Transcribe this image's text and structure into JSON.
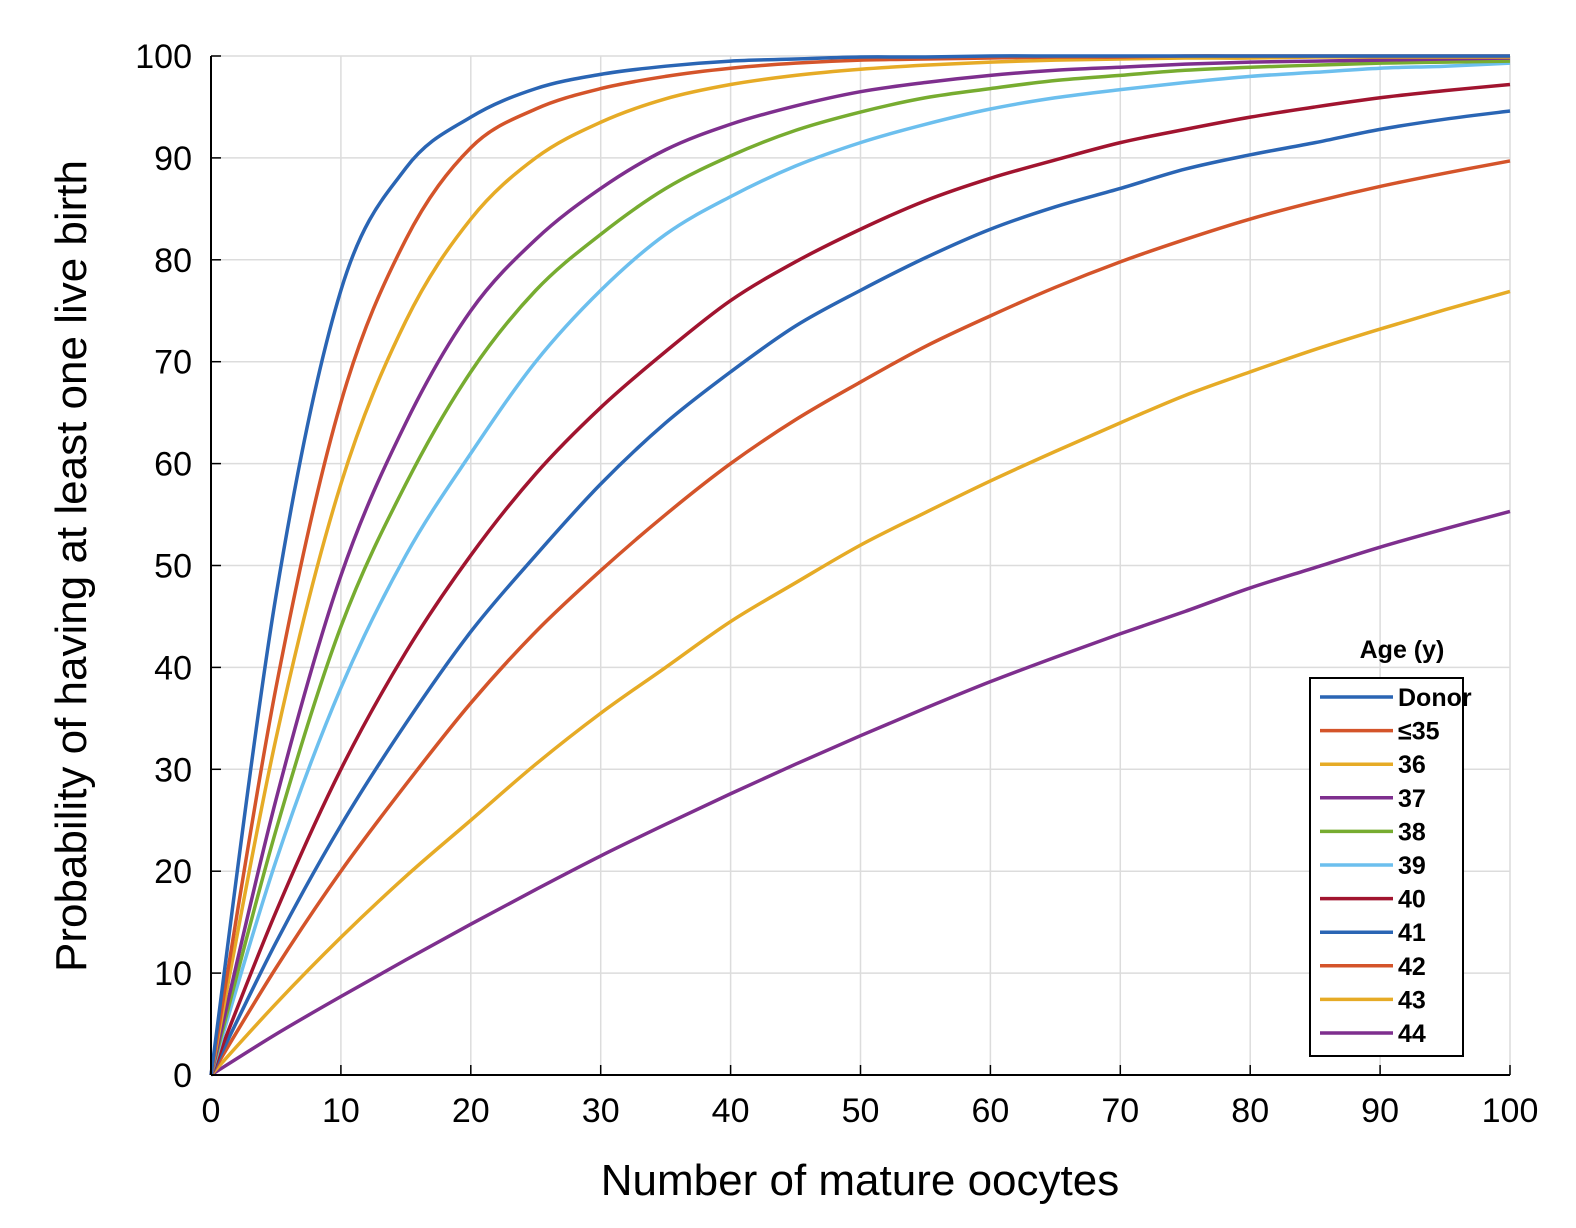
{
  "chart_data": {
    "type": "line",
    "title": "",
    "xlabel": "Number of mature oocytes",
    "ylabel": "Probability of having at least one live birth",
    "xlim": [
      0,
      100
    ],
    "ylim": [
      0,
      100
    ],
    "xticks": [
      "0",
      "10",
      "20",
      "30",
      "40",
      "50",
      "60",
      "70",
      "80",
      "90",
      "100"
    ],
    "yticks": [
      "0",
      "10",
      "20",
      "30",
      "40",
      "50",
      "60",
      "70",
      "80",
      "90",
      "100"
    ],
    "grid": true,
    "legend": {
      "title": "Age (y)",
      "placement": "bottom-right"
    },
    "x": [
      0,
      5,
      10,
      15,
      20,
      25,
      30,
      35,
      40,
      45,
      50,
      55,
      60,
      65,
      70,
      75,
      80,
      85,
      90,
      95,
      100
    ],
    "series": [
      {
        "name": "Donor",
        "color": "#2a65b4",
        "values": [
          0,
          47,
          77,
          89,
          94,
          96.8,
          98.2,
          99,
          99.5,
          99.7,
          99.9,
          99.9,
          100,
          100,
          100,
          100,
          100,
          100,
          100,
          100,
          100
        ]
      },
      {
        "name": "≤35",
        "color": "#d4542a",
        "values": [
          0,
          38,
          66,
          82,
          91,
          94.8,
          96.8,
          98,
          98.8,
          99.3,
          99.6,
          99.7,
          99.8,
          99.9,
          99.9,
          100,
          100,
          100,
          100,
          100,
          100
        ]
      },
      {
        "name": "36",
        "color": "#e6ab26",
        "values": [
          0,
          33,
          58,
          74,
          84,
          90,
          93.5,
          95.8,
          97.2,
          98.1,
          98.7,
          99.1,
          99.4,
          99.6,
          99.7,
          99.8,
          99.8,
          99.9,
          99.9,
          99.9,
          99.9
        ]
      },
      {
        "name": "37",
        "color": "#7e2f8e",
        "values": [
          0,
          27,
          49,
          64,
          75,
          82,
          87,
          90.8,
          93.3,
          95.1,
          96.5,
          97.4,
          98.1,
          98.6,
          98.9,
          99.2,
          99.4,
          99.5,
          99.6,
          99.7,
          99.8
        ]
      },
      {
        "name": "38",
        "color": "#77ac30",
        "values": [
          0,
          24,
          44,
          58,
          69,
          77,
          82.5,
          87,
          90.2,
          92.7,
          94.5,
          95.9,
          96.8,
          97.6,
          98.1,
          98.6,
          98.9,
          99.1,
          99.3,
          99.4,
          99.5
        ]
      },
      {
        "name": "39",
        "color": "#6cbfee",
        "values": [
          0,
          21,
          38,
          51,
          61,
          70,
          77,
          82.5,
          86.2,
          89.2,
          91.5,
          93.3,
          94.8,
          95.9,
          96.7,
          97.4,
          98,
          98.4,
          98.8,
          99,
          99.3
        ]
      },
      {
        "name": "40",
        "color": "#a1142f",
        "values": [
          0,
          16,
          30,
          41.5,
          51,
          59,
          65.5,
          71,
          76,
          79.8,
          83,
          85.8,
          88,
          89.8,
          91.5,
          92.8,
          94,
          95,
          95.9,
          96.6,
          97.2
        ]
      },
      {
        "name": "41",
        "color": "#2a65b4",
        "values": [
          0,
          13,
          24.5,
          34.5,
          43.5,
          51,
          58,
          64,
          69,
          73.5,
          77,
          80.2,
          83,
          85.2,
          87,
          88.9,
          90.3,
          91.5,
          92.8,
          93.8,
          94.6
        ]
      },
      {
        "name": "42",
        "color": "#d4542a",
        "values": [
          0,
          10.5,
          20,
          28.5,
          36.5,
          43.5,
          49.5,
          55,
          60,
          64.3,
          68,
          71.5,
          74.5,
          77.3,
          79.8,
          82,
          84,
          85.7,
          87.2,
          88.5,
          89.7
        ]
      },
      {
        "name": "43",
        "color": "#e6ab26",
        "values": [
          0,
          7,
          13.5,
          19.5,
          25,
          30.5,
          35.5,
          40,
          44.5,
          48.3,
          52,
          55.2,
          58.3,
          61.2,
          64,
          66.7,
          69,
          71.2,
          73.2,
          75.1,
          76.9
        ]
      },
      {
        "name": "44",
        "color": "#7e2f8e",
        "values": [
          0,
          4,
          7.7,
          11.3,
          14.8,
          18.2,
          21.5,
          24.6,
          27.6,
          30.5,
          33.3,
          36,
          38.6,
          41,
          43.3,
          45.5,
          47.8,
          49.8,
          51.8,
          53.6,
          55.3
        ]
      }
    ]
  }
}
